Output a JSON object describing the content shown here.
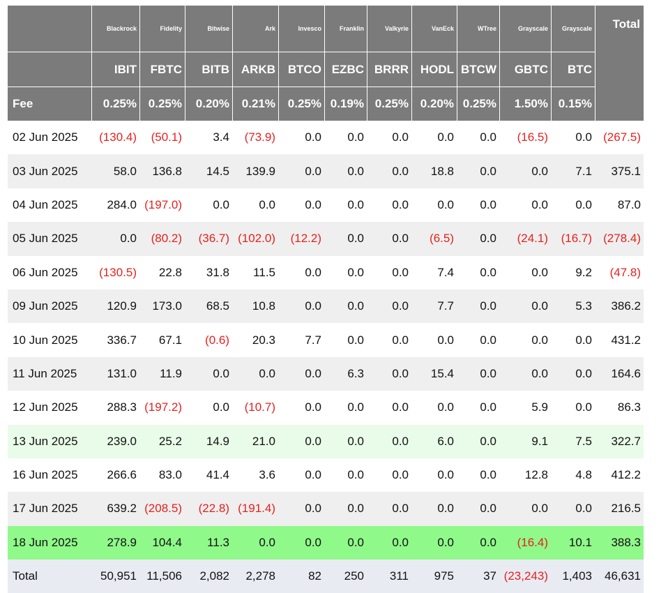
{
  "table": {
    "issuers": [
      "Blackrock",
      "Fidelity",
      "Bitwise",
      "Ark",
      "Invesco",
      "Franklin",
      "Valkyrie",
      "VanEck",
      "WTree",
      "Grayscale",
      "Grayscale"
    ],
    "total_label": "Total",
    "tickers": [
      "IBIT",
      "FBTC",
      "BITB",
      "ARKB",
      "BTCO",
      "EZBC",
      "BRRR",
      "HODL",
      "BTCW",
      "GBTC",
      "BTC"
    ],
    "fee_label": "Fee",
    "fees": [
      "0.25%",
      "0.25%",
      "0.20%",
      "0.21%",
      "0.25%",
      "0.19%",
      "0.25%",
      "0.20%",
      "0.25%",
      "1.50%",
      "0.15%"
    ],
    "rows": [
      {
        "date": "02 Jun 2025",
        "values": [
          "(130.4)",
          "(50.1)",
          "3.4",
          "(73.9)",
          "0.0",
          "0.0",
          "0.0",
          "0.0",
          "0.0",
          "(16.5)",
          "0.0"
        ],
        "total": "(267.5)"
      },
      {
        "date": "03 Jun 2025",
        "values": [
          "58.0",
          "136.8",
          "14.5",
          "139.9",
          "0.0",
          "0.0",
          "0.0",
          "18.8",
          "0.0",
          "0.0",
          "7.1"
        ],
        "total": "375.1"
      },
      {
        "date": "04 Jun 2025",
        "values": [
          "284.0",
          "(197.0)",
          "0.0",
          "0.0",
          "0.0",
          "0.0",
          "0.0",
          "0.0",
          "0.0",
          "0.0",
          "0.0"
        ],
        "total": "87.0"
      },
      {
        "date": "05 Jun 2025",
        "values": [
          "0.0",
          "(80.2)",
          "(36.7)",
          "(102.0)",
          "(12.2)",
          "0.0",
          "0.0",
          "(6.5)",
          "0.0",
          "(24.1)",
          "(16.7)"
        ],
        "total": "(278.4)"
      },
      {
        "date": "06 Jun 2025",
        "values": [
          "(130.5)",
          "22.8",
          "31.8",
          "11.5",
          "0.0",
          "0.0",
          "0.0",
          "7.4",
          "0.0",
          "0.0",
          "9.2"
        ],
        "total": "(47.8)"
      },
      {
        "date": "09 Jun 2025",
        "values": [
          "120.9",
          "173.0",
          "68.5",
          "10.8",
          "0.0",
          "0.0",
          "0.0",
          "7.7",
          "0.0",
          "0.0",
          "5.3"
        ],
        "total": "386.2"
      },
      {
        "date": "10 Jun 2025",
        "values": [
          "336.7",
          "67.1",
          "(0.6)",
          "20.3",
          "7.7",
          "0.0",
          "0.0",
          "0.0",
          "0.0",
          "0.0",
          "0.0"
        ],
        "total": "431.2"
      },
      {
        "date": "11 Jun 2025",
        "values": [
          "131.0",
          "11.9",
          "0.0",
          "0.0",
          "0.0",
          "6.3",
          "0.0",
          "15.4",
          "0.0",
          "0.0",
          "0.0"
        ],
        "total": "164.6"
      },
      {
        "date": "12 Jun 2025",
        "values": [
          "288.3",
          "(197.2)",
          "0.0",
          "(10.7)",
          "0.0",
          "0.0",
          "0.0",
          "0.0",
          "0.0",
          "5.9",
          "0.0"
        ],
        "total": "86.3"
      },
      {
        "date": "13 Jun 2025",
        "values": [
          "239.0",
          "25.2",
          "14.9",
          "21.0",
          "0.0",
          "0.0",
          "0.0",
          "6.0",
          "0.0",
          "9.1",
          "7.5"
        ],
        "total": "322.7"
      },
      {
        "date": "16 Jun 2025",
        "values": [
          "266.6",
          "83.0",
          "41.4",
          "3.6",
          "0.0",
          "0.0",
          "0.0",
          "0.0",
          "0.0",
          "12.8",
          "4.8"
        ],
        "total": "412.2"
      },
      {
        "date": "17 Jun 2025",
        "values": [
          "639.2",
          "(208.5)",
          "(22.8)",
          "(191.4)",
          "0.0",
          "0.0",
          "0.0",
          "0.0",
          "0.0",
          "0.0",
          "0.0"
        ],
        "total": "216.5"
      },
      {
        "date": "18 Jun 2025",
        "values": [
          "278.9",
          "104.4",
          "11.3",
          "0.0",
          "0.0",
          "0.0",
          "0.0",
          "0.0",
          "0.0",
          "(16.4)",
          "10.1"
        ],
        "total": "388.3"
      }
    ],
    "totals_row": {
      "label": "Total",
      "values": [
        "50,951",
        "11,506",
        "2,082",
        "2,278",
        "82",
        "250",
        "311",
        "975",
        "37",
        "(23,243)",
        "1,403"
      ],
      "total": "46,631"
    }
  },
  "colors": {
    "header_bg": "#7b7b7b",
    "negative": "#e8201e",
    "row_alt": "#efefef",
    "highlight_light": "#e9fbe9",
    "highlight_strong": "#8ff98a",
    "totals_bg": "#e9ebf3"
  }
}
